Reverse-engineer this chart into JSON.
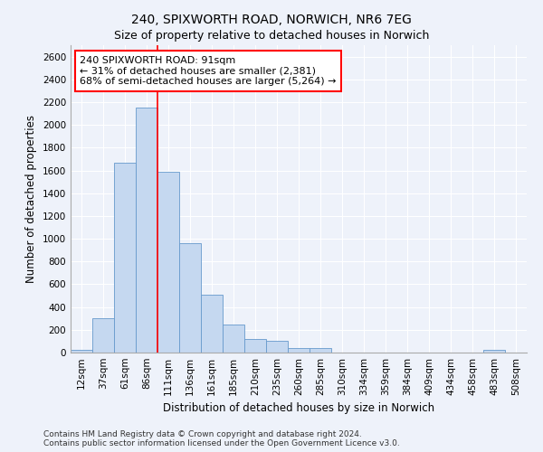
{
  "title": "240, SPIXWORTH ROAD, NORWICH, NR6 7EG",
  "subtitle": "Size of property relative to detached houses in Norwich",
  "xlabel": "Distribution of detached houses by size in Norwich",
  "ylabel": "Number of detached properties",
  "categories": [
    "12sqm",
    "37sqm",
    "61sqm",
    "86sqm",
    "111sqm",
    "136sqm",
    "161sqm",
    "185sqm",
    "210sqm",
    "235sqm",
    "260sqm",
    "285sqm",
    "310sqm",
    "334sqm",
    "359sqm",
    "384sqm",
    "409sqm",
    "434sqm",
    "458sqm",
    "483sqm",
    "508sqm"
  ],
  "values": [
    25,
    300,
    1670,
    2150,
    1590,
    960,
    505,
    250,
    120,
    100,
    40,
    40,
    0,
    0,
    0,
    0,
    0,
    0,
    0,
    25,
    0
  ],
  "bar_color": "#c5d8f0",
  "bar_edge_color": "#6699cc",
  "vline_color": "red",
  "vline_x_index": 3.5,
  "annotation_box_text_line1": "240 SPIXWORTH ROAD: 91sqm",
  "annotation_box_text_line2": "← 31% of detached houses are smaller (2,381)",
  "annotation_box_text_line3": "68% of semi-detached houses are larger (5,264) →",
  "annotation_box_color": "white",
  "annotation_box_edge_color": "red",
  "ylim": [
    0,
    2700
  ],
  "yticks": [
    0,
    200,
    400,
    600,
    800,
    1000,
    1200,
    1400,
    1600,
    1800,
    2000,
    2200,
    2400,
    2600
  ],
  "footer_line1": "Contains HM Land Registry data © Crown copyright and database right 2024.",
  "footer_line2": "Contains public sector information licensed under the Open Government Licence v3.0.",
  "bg_color": "#eef2fa",
  "grid_color": "white",
  "title_fontsize": 10,
  "subtitle_fontsize": 9,
  "axis_label_fontsize": 8.5,
  "tick_fontsize": 7.5,
  "footer_fontsize": 6.5
}
